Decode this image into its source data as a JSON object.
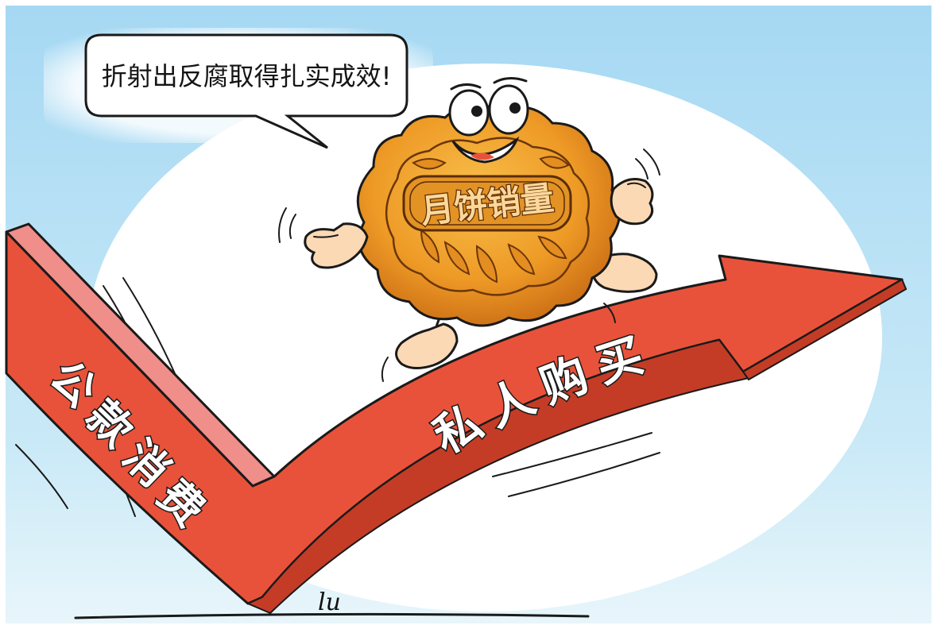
{
  "cartoon": {
    "speech_bubble": "折射出反腐取得扎实成效!",
    "mooncake_label": "月饼销量",
    "arrow_down_label": [
      "公",
      "款",
      "消",
      "费"
    ],
    "arrow_up_label": [
      "私",
      "人",
      "购",
      "买"
    ],
    "signature": "lu"
  },
  "colors": {
    "sky": "#a9daf2",
    "ellipse": "#ffffff",
    "arrow": "#e9523a",
    "arrow_side": "#f08e8a",
    "mooncake": "#f2a02b",
    "mooncake_dark": "#c8701a",
    "skin": "#fbd9b5",
    "ink": "#1a1a1a"
  }
}
